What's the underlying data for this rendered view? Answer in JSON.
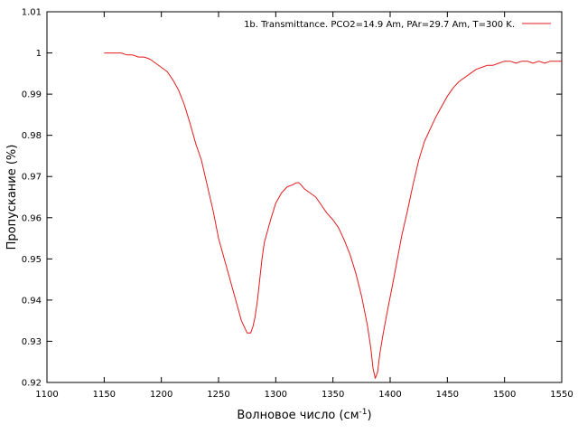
{
  "chart_data": {
    "type": "line",
    "title": "",
    "xlabel": "Волновое число (см",
    "xlabel_sup": "-1",
    "xlabel_suffix": ")",
    "ylabel": "Пропускание (%)",
    "xlim": [
      1100,
      1550
    ],
    "ylim": [
      0.92,
      1.01
    ],
    "xticks": [
      1100,
      1150,
      1200,
      1250,
      1300,
      1350,
      1400,
      1450,
      1500,
      1550
    ],
    "yticks": [
      0.92,
      0.93,
      0.94,
      0.95,
      0.96,
      0.97,
      0.98,
      0.99,
      1,
      1.01
    ],
    "grid": false,
    "legend_position": "top-right",
    "series": [
      {
        "name": "1b. Transmittance. PCO2=14.9 Am, PAr=29.7 Am, T=300 K.",
        "color": "#e41a1c",
        "x": [
          1150,
          1155,
          1160,
          1165,
          1170,
          1175,
          1180,
          1185,
          1190,
          1195,
          1200,
          1205,
          1210,
          1215,
          1220,
          1225,
          1230,
          1235,
          1240,
          1245,
          1250,
          1255,
          1260,
          1265,
          1270,
          1275,
          1278,
          1280,
          1282,
          1284,
          1286,
          1288,
          1290,
          1293,
          1296,
          1300,
          1305,
          1310,
          1315,
          1318,
          1320,
          1322,
          1325,
          1330,
          1335,
          1340,
          1345,
          1350,
          1355,
          1360,
          1365,
          1370,
          1375,
          1380,
          1383,
          1385,
          1387,
          1389,
          1391,
          1394,
          1398,
          1402,
          1406,
          1410,
          1415,
          1420,
          1425,
          1430,
          1435,
          1440,
          1445,
          1450,
          1455,
          1460,
          1465,
          1470,
          1475,
          1480,
          1485,
          1490,
          1495,
          1500,
          1505,
          1510,
          1515,
          1520,
          1525,
          1530,
          1535,
          1540,
          1545,
          1550
        ],
        "y": [
          1.0,
          1.0,
          1.0,
          1.0,
          0.9995,
          0.9995,
          0.999,
          0.999,
          0.9985,
          0.9975,
          0.9965,
          0.9955,
          0.9935,
          0.991,
          0.9875,
          0.983,
          0.978,
          0.974,
          0.968,
          0.962,
          0.955,
          0.95,
          0.945,
          0.94,
          0.935,
          0.932,
          0.932,
          0.9335,
          0.936,
          0.94,
          0.945,
          0.95,
          0.954,
          0.957,
          0.96,
          0.9635,
          0.966,
          0.9675,
          0.968,
          0.9685,
          0.9685,
          0.968,
          0.967,
          0.966,
          0.965,
          0.963,
          0.961,
          0.9595,
          0.9575,
          0.9545,
          0.951,
          0.9465,
          0.941,
          0.934,
          0.9285,
          0.9235,
          0.921,
          0.9225,
          0.927,
          0.932,
          0.938,
          0.9435,
          0.9495,
          0.9555,
          0.9615,
          0.968,
          0.974,
          0.9785,
          0.9815,
          0.9845,
          0.987,
          0.9895,
          0.9915,
          0.993,
          0.994,
          0.995,
          0.996,
          0.9965,
          0.997,
          0.997,
          0.9975,
          0.998,
          0.998,
          0.9975,
          0.998,
          0.998,
          0.9975,
          0.998,
          0.9975,
          0.998,
          0.998,
          0.998
        ]
      }
    ]
  }
}
